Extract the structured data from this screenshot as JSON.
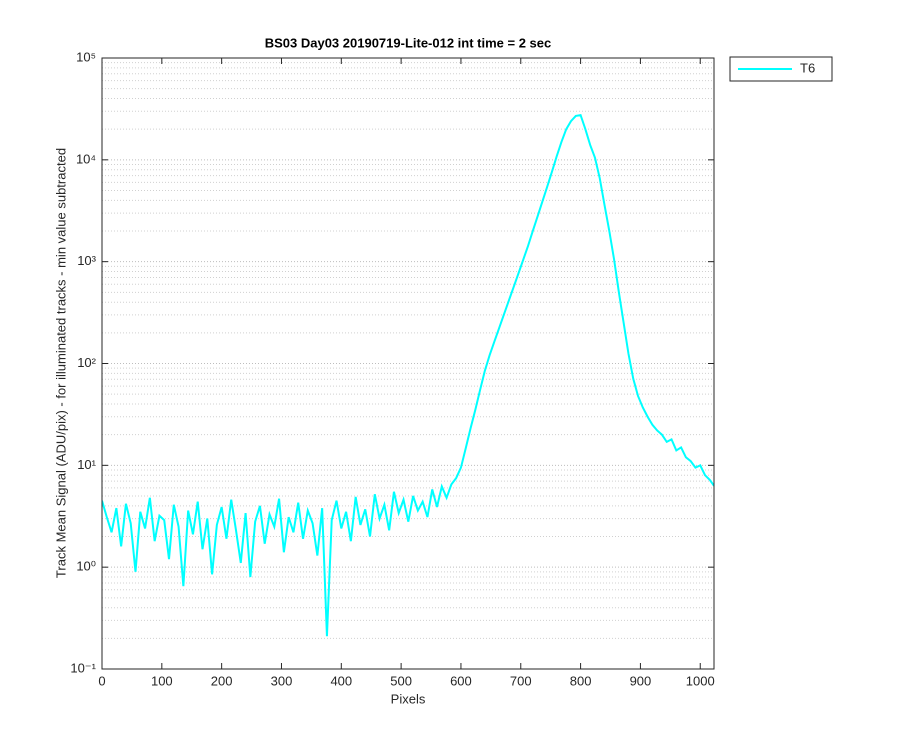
{
  "chart_data": {
    "type": "line",
    "title": "BS03 Day03 20190719-Lite-012 int time = 2 sec",
    "x_label": "Pixels",
    "y_label": "Track Mean Signal (ADU/pix) - for illuminated tracks - min value subtracted",
    "log_y": true,
    "grid": true,
    "legend_position": "outside-top-right",
    "xlim": [
      0,
      1023
    ],
    "ylim": [
      0.1,
      100000
    ],
    "xticks": [
      0,
      100,
      200,
      300,
      400,
      500,
      600,
      700,
      800,
      900,
      1000
    ],
    "yticks": [
      {
        "value": 0.1,
        "label": "10⁻¹"
      },
      {
        "value": 1,
        "label": "10⁰"
      },
      {
        "value": 10,
        "label": "10¹"
      },
      {
        "value": 100,
        "label": "10²"
      },
      {
        "value": 1000,
        "label": "10³"
      },
      {
        "value": 10000,
        "label": "10⁴"
      },
      {
        "value": 100000,
        "label": "10⁵"
      }
    ],
    "x": [
      0,
      8,
      16,
      24,
      32,
      40,
      48,
      56,
      64,
      72,
      80,
      88,
      96,
      104,
      112,
      120,
      128,
      136,
      144,
      152,
      160,
      168,
      176,
      184,
      192,
      200,
      208,
      216,
      224,
      232,
      240,
      248,
      256,
      264,
      272,
      280,
      288,
      296,
      304,
      312,
      320,
      328,
      336,
      344,
      352,
      360,
      368,
      376,
      384,
      392,
      400,
      408,
      416,
      424,
      432,
      440,
      448,
      456,
      464,
      472,
      480,
      488,
      496,
      504,
      512,
      520,
      528,
      536,
      544,
      552,
      560,
      568,
      576,
      584,
      592,
      600,
      608,
      616,
      624,
      632,
      640,
      648,
      656,
      664,
      672,
      680,
      688,
      696,
      704,
      712,
      720,
      728,
      736,
      744,
      752,
      760,
      768,
      776,
      784,
      792,
      800,
      808,
      816,
      824,
      832,
      840,
      848,
      856,
      864,
      872,
      880,
      888,
      896,
      904,
      912,
      920,
      928,
      936,
      944,
      952,
      960,
      968,
      976,
      984,
      992,
      1000,
      1008,
      1016,
      1023
    ],
    "series": [
      {
        "name": "T6",
        "color": "#00ffff",
        "values": [
          4.5,
          3.1,
          2.2,
          3.8,
          1.6,
          4.2,
          2.7,
          0.9,
          3.5,
          2.4,
          4.8,
          1.8,
          3.2,
          2.9,
          1.2,
          4.1,
          2.5,
          0.65,
          3.6,
          2.1,
          4.4,
          1.5,
          3.0,
          0.85,
          2.6,
          3.9,
          1.9,
          4.6,
          2.3,
          1.1,
          3.4,
          0.8,
          2.8,
          4.0,
          1.7,
          3.3,
          2.5,
          4.7,
          1.4,
          3.1,
          2.2,
          4.3,
          1.9,
          3.6,
          2.7,
          1.3,
          3.8,
          0.21,
          2.9,
          4.5,
          2.4,
          3.5,
          1.8,
          4.9,
          2.6,
          3.7,
          2.0,
          5.2,
          3.0,
          4.1,
          2.3,
          5.5,
          3.4,
          4.6,
          2.8,
          5.0,
          3.6,
          4.4,
          3.1,
          5.8,
          3.9,
          6.2,
          4.8,
          6.5,
          7.5,
          9.5,
          14.7,
          23,
          35,
          55,
          85,
          121,
          165,
          224,
          305,
          414,
          562,
          763,
          1040,
          1420,
          1990,
          2770,
          3870,
          5400,
          7600,
          10800,
          15000,
          20000,
          24000,
          27000,
          27500,
          20000,
          14000,
          10500,
          6600,
          3600,
          2000,
          1050,
          500,
          250,
          125,
          71,
          48,
          37,
          30,
          25,
          22,
          20,
          17,
          18,
          14,
          15,
          12,
          11,
          9.5,
          10,
          8,
          7.2,
          6.3
        ]
      }
    ]
  }
}
